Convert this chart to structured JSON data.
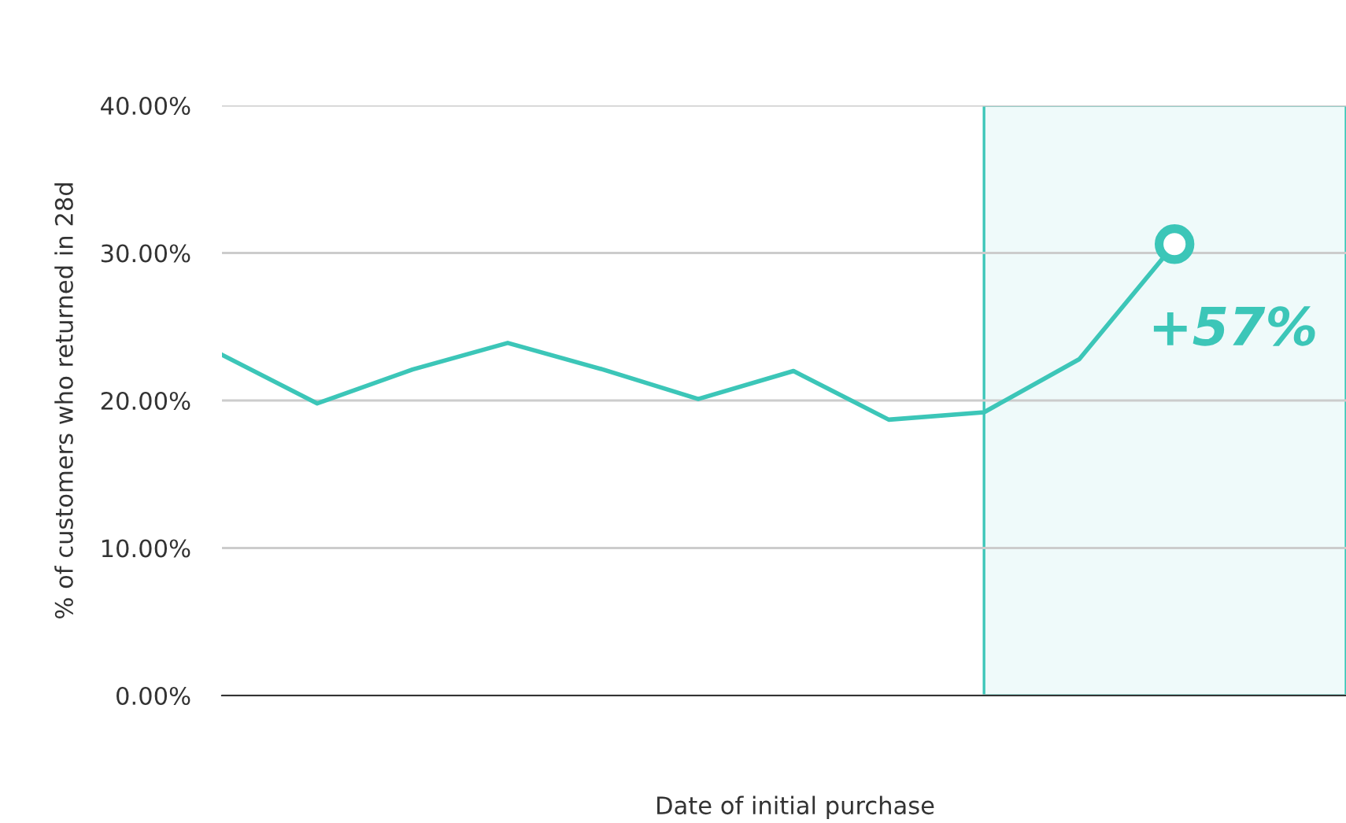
{
  "chart_data": {
    "type": "line",
    "xlabel": "Date of initial purchase",
    "ylabel": "% of customers who returned in 28d",
    "categories": [
      null,
      null,
      null,
      null,
      null,
      null,
      null,
      null,
      null,
      null,
      null
    ],
    "series": [
      {
        "color": "#3cc6b8",
        "values": [
          23.1,
          19.8,
          22.1,
          23.9,
          22.1,
          20.1,
          22.0,
          18.7,
          19.2,
          22.8,
          30.6
        ]
      }
    ],
    "ylim": [
      0,
      40
    ],
    "yticks": [
      {
        "value": 0,
        "label": "0.00%"
      },
      {
        "value": 10,
        "label": "10.00%"
      },
      {
        "value": 20,
        "label": "20.00%"
      },
      {
        "value": 30,
        "label": "30.00%"
      },
      {
        "value": 40,
        "label": "40.00%"
      }
    ],
    "tick_labels": "y",
    "grid": "y",
    "annotations": [
      "+57%"
    ]
  }
}
